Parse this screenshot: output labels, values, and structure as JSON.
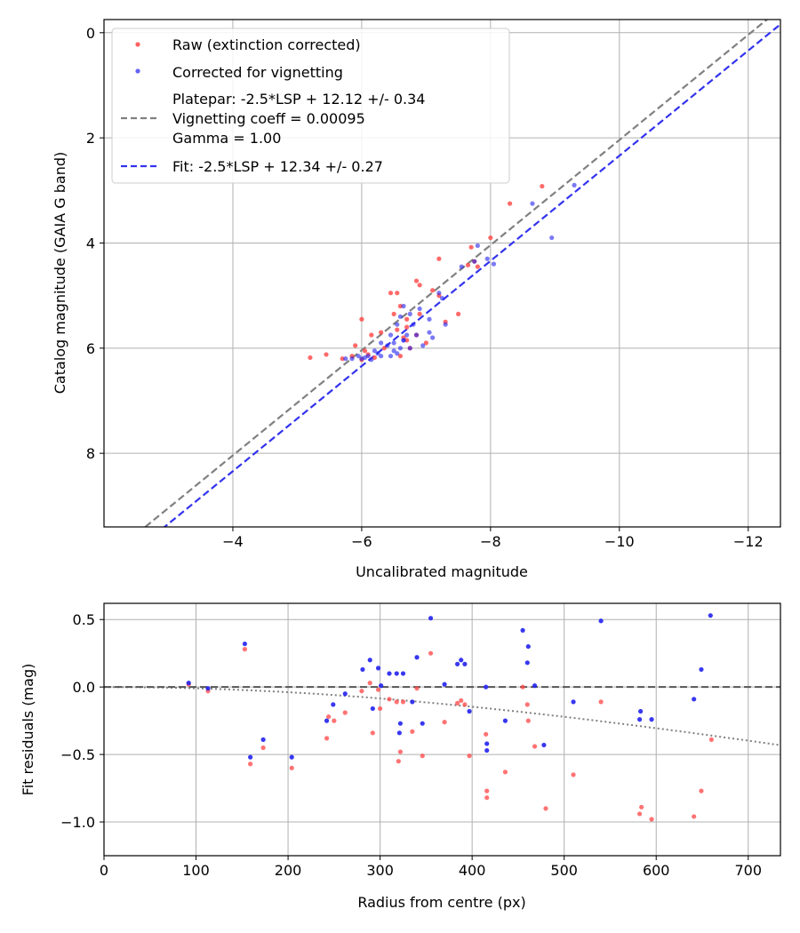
{
  "chart_data": [
    {
      "type": "scatter",
      "title": "",
      "xlabel": "Uncalibrated magnitude",
      "ylabel": "Catalog magnitude (GAIA G band)",
      "xlim": [
        -2,
        -12.5
      ],
      "ylim": [
        9.4,
        -0.25
      ],
      "x_inverted": true,
      "y_inverted": true,
      "xticks": [
        -4,
        -6,
        -8,
        -10,
        -12
      ],
      "xtick_labels": [
        "−4",
        "−6",
        "−8",
        "−10",
        "−12"
      ],
      "yticks": [
        0,
        2,
        4,
        6,
        8
      ],
      "ytick_labels": [
        "0",
        "2",
        "4",
        "6",
        "8"
      ],
      "grid": true,
      "legend_position": "top-left",
      "legend": {
        "raw": "Raw (extinction corrected)",
        "corrected": "Corrected for vignetting",
        "platepar": [
          "Platepar: -2.5*LSP + 12.12 +/- 0.34",
          "Vignetting coeff = 0.00095",
          "Gamma = 1.00"
        ],
        "fit": "Fit: -2.5*LSP + 12.34 +/- 0.27"
      },
      "lines": [
        {
          "name": "platepar",
          "color": "#808080",
          "x": [
            -2,
            -12.5
          ],
          "y": [
            10.04,
            -0.46
          ]
        },
        {
          "name": "fit",
          "color": "#3333ee",
          "x": [
            -2,
            -12.5
          ],
          "y": [
            10.34,
            -0.16
          ]
        }
      ],
      "series": [
        {
          "name": "Raw (extinction corrected)",
          "color": "#ff4444",
          "x": [
            -8.8,
            -8.3,
            -8.0,
            -7.7,
            -7.65,
            -7.2,
            -7.75,
            -7.8,
            -6.45,
            -6.55,
            -6.85,
            -6.9,
            -7.1,
            -7.2,
            -6.6,
            -6.5,
            -6.7,
            -7.5,
            -7.3,
            -6.9,
            -6.0,
            -6.15,
            -6.85,
            -6.7,
            -6.55,
            -6.3,
            -6.65,
            -6.7,
            -7.0,
            -5.9,
            -6.05,
            -5.2,
            -5.45,
            -5.7,
            -5.85,
            -6.2,
            -6.0,
            -6.35,
            -6.6,
            -6.75,
            -6.1
          ],
          "y": [
            2.92,
            3.25,
            3.9,
            4.08,
            4.42,
            4.3,
            4.35,
            4.45,
            4.95,
            4.95,
            4.72,
            4.8,
            4.9,
            5.0,
            5.2,
            5.35,
            5.45,
            5.35,
            5.5,
            5.35,
            5.45,
            5.75,
            5.75,
            5.6,
            5.65,
            5.7,
            5.8,
            5.85,
            5.9,
            5.95,
            6.05,
            6.18,
            6.12,
            6.2,
            6.15,
            6.18,
            6.22,
            6.0,
            6.15,
            6.0,
            6.12
          ]
        },
        {
          "name": "Corrected for vignetting",
          "color": "#2222ee",
          "x": [
            -9.3,
            -8.95,
            -8.65,
            -8.05,
            -7.8,
            -7.75,
            -7.95,
            -7.55,
            -7.2,
            -7.25,
            -7.05,
            -6.9,
            -6.75,
            -6.65,
            -6.6,
            -6.55,
            -6.8,
            -6.85,
            -7.05,
            -7.1,
            -7.3,
            -6.7,
            -6.65,
            -6.5,
            -6.45,
            -6.3,
            -6.4,
            -6.5,
            -6.6,
            -6.75,
            -6.95,
            -6.2,
            -6.25,
            -6.3,
            -6.1,
            -6.0,
            -5.95,
            -5.85,
            -5.75,
            -6.45,
            -6.55,
            -6.65,
            -6.15,
            -6.05
          ],
          "y": [
            2.9,
            3.9,
            3.25,
            4.4,
            4.05,
            4.35,
            4.3,
            4.45,
            4.95,
            5.05,
            5.45,
            5.25,
            5.35,
            5.2,
            5.4,
            5.55,
            5.55,
            5.75,
            5.7,
            5.8,
            5.55,
            5.75,
            5.85,
            5.9,
            5.75,
            5.9,
            5.95,
            6.05,
            6.0,
            6.0,
            5.95,
            6.05,
            6.1,
            6.15,
            6.15,
            6.2,
            6.15,
            6.2,
            6.2,
            6.15,
            6.1,
            5.85,
            6.22,
            6.18
          ]
        }
      ]
    },
    {
      "type": "scatter",
      "title": "",
      "xlabel": "Radius from centre (px)",
      "ylabel": "Fit residuals (mag)",
      "xlim": [
        0,
        735
      ],
      "ylim": [
        -1.25,
        0.62
      ],
      "xticks": [
        0,
        100,
        200,
        300,
        400,
        500,
        600,
        700
      ],
      "xtick_labels": [
        "0",
        "100",
        "200",
        "300",
        "400",
        "500",
        "600",
        "700"
      ],
      "yticks": [
        -1.0,
        -0.5,
        0.0,
        0.5
      ],
      "ytick_labels": [
        "−1.0",
        "−0.5",
        "0.0",
        "0.5"
      ],
      "grid": true,
      "lines": [
        {
          "name": "zero",
          "color": "#555555",
          "style": "dashed",
          "x": [
            0,
            735
          ],
          "y": [
            0,
            0
          ]
        },
        {
          "name": "vignetting",
          "color": "#808080",
          "style": "dotted",
          "coeff": 0.00095
        }
      ],
      "series": [
        {
          "name": "corrected",
          "color": "#2222ee",
          "x": [
            92,
            113,
            153,
            159,
            173,
            204,
            242,
            249,
            262,
            281,
            289,
            292,
            298,
            301,
            310,
            318,
            321,
            322,
            325,
            335,
            340,
            346,
            355,
            370,
            384,
            388,
            392,
            397,
            415,
            416,
            416,
            436,
            455,
            460,
            461,
            468,
            478,
            510,
            540,
            582,
            583,
            595,
            641,
            649,
            659
          ],
          "y": [
            0.03,
            -0.01,
            0.32,
            -0.52,
            -0.39,
            -0.52,
            -0.25,
            -0.13,
            -0.05,
            0.13,
            0.2,
            -0.16,
            0.14,
            0.01,
            0.1,
            0.1,
            -0.34,
            -0.27,
            0.1,
            -0.11,
            0.22,
            -0.27,
            0.51,
            0.02,
            0.17,
            0.2,
            0.17,
            -0.18,
            0.0,
            -0.42,
            -0.47,
            -0.25,
            0.42,
            0.18,
            0.3,
            0.01,
            -0.43,
            -0.11,
            0.49,
            -0.24,
            -0.18,
            -0.24,
            -0.09,
            0.13,
            0.53
          ]
        },
        {
          "name": "raw",
          "color": "#ff4444",
          "x": [
            92,
            113,
            153,
            159,
            173,
            204,
            242,
            244,
            250,
            262,
            280,
            289,
            292,
            298,
            300,
            310,
            318,
            320,
            322,
            325,
            335,
            340,
            346,
            355,
            370,
            384,
            388,
            392,
            397,
            415,
            416,
            416,
            436,
            455,
            460,
            461,
            468,
            480,
            510,
            540,
            582,
            584,
            595,
            641,
            649,
            660
          ],
          "y": [
            0.02,
            -0.03,
            0.28,
            -0.57,
            -0.45,
            -0.6,
            -0.38,
            -0.22,
            -0.25,
            -0.19,
            -0.03,
            0.03,
            -0.34,
            -0.02,
            -0.16,
            -0.09,
            -0.11,
            -0.55,
            -0.48,
            -0.11,
            -0.33,
            -0.01,
            -0.51,
            0.25,
            -0.26,
            -0.12,
            -0.1,
            -0.13,
            -0.51,
            -0.35,
            -0.77,
            -0.82,
            -0.63,
            0.0,
            -0.13,
            -0.25,
            -0.44,
            -0.9,
            -0.65,
            -0.11,
            -0.94,
            -0.89,
            -0.98,
            -0.96,
            -0.77,
            -0.39
          ]
        }
      ]
    }
  ]
}
